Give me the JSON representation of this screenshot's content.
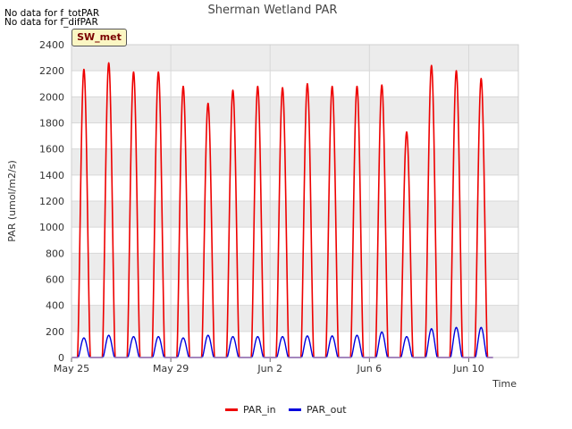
{
  "header": {
    "nodata_lines": [
      "No data for f_totPAR",
      "No data for f_difPAR"
    ],
    "badge": "SW_met"
  },
  "colors": {
    "PAR_in": "#ee0000",
    "PAR_out": "#0000dd",
    "band": "#ececec",
    "grid": "#d8d8d8"
  },
  "chart_data": {
    "type": "line",
    "title": "Sherman Wetland PAR",
    "xlabel": "Time",
    "ylabel": "PAR (umol/m2/s)",
    "xlim": [
      "2024-05-25",
      "2024-06-12"
    ],
    "ylim": [
      0,
      2400
    ],
    "y_ticks": [
      0,
      200,
      400,
      600,
      800,
      1000,
      1200,
      1400,
      1600,
      1800,
      2000,
      2200,
      2400
    ],
    "x_ticks": [
      {
        "date": "2024-05-25",
        "label": "May 25"
      },
      {
        "date": "2024-05-29",
        "label": "May 29"
      },
      {
        "date": "2024-06-02",
        "label": "Jun 2"
      },
      {
        "date": "2024-06-06",
        "label": "Jun 6"
      },
      {
        "date": "2024-06-10",
        "label": "Jun 10"
      }
    ],
    "grid": true,
    "legend_position": "bottom-center",
    "series": [
      {
        "name": "PAR_in",
        "daily_peaks": [
          {
            "date": "2024-05-25",
            "peak": 2210
          },
          {
            "date": "2024-05-26",
            "peak": 2260
          },
          {
            "date": "2024-05-27",
            "peak": 2190
          },
          {
            "date": "2024-05-28",
            "peak": 2190
          },
          {
            "date": "2024-05-29",
            "peak": 2080
          },
          {
            "date": "2024-05-30",
            "peak": 1950
          },
          {
            "date": "2024-05-31",
            "peak": 2050
          },
          {
            "date": "2024-06-01",
            "peak": 2080
          },
          {
            "date": "2024-06-02",
            "peak": 2070
          },
          {
            "date": "2024-06-03",
            "peak": 2100
          },
          {
            "date": "2024-06-04",
            "peak": 2080
          },
          {
            "date": "2024-06-05",
            "peak": 2080
          },
          {
            "date": "2024-06-06",
            "peak": 2090
          },
          {
            "date": "2024-06-07",
            "peak": 1730
          },
          {
            "date": "2024-06-08",
            "peak": 2240
          },
          {
            "date": "2024-06-09",
            "peak": 2200
          },
          {
            "date": "2024-06-10",
            "peak": 2140
          }
        ]
      },
      {
        "name": "PAR_out",
        "daily_peaks": [
          {
            "date": "2024-05-25",
            "peak": 150
          },
          {
            "date": "2024-05-26",
            "peak": 170
          },
          {
            "date": "2024-05-27",
            "peak": 160
          },
          {
            "date": "2024-05-28",
            "peak": 160
          },
          {
            "date": "2024-05-29",
            "peak": 150
          },
          {
            "date": "2024-05-30",
            "peak": 170
          },
          {
            "date": "2024-05-31",
            "peak": 160
          },
          {
            "date": "2024-06-01",
            "peak": 160
          },
          {
            "date": "2024-06-02",
            "peak": 160
          },
          {
            "date": "2024-06-03",
            "peak": 165
          },
          {
            "date": "2024-06-04",
            "peak": 165
          },
          {
            "date": "2024-06-05",
            "peak": 170
          },
          {
            "date": "2024-06-06",
            "peak": 195
          },
          {
            "date": "2024-06-07",
            "peak": 160
          },
          {
            "date": "2024-06-08",
            "peak": 220
          },
          {
            "date": "2024-06-09",
            "peak": 230
          },
          {
            "date": "2024-06-10",
            "peak": 230
          }
        ]
      }
    ]
  }
}
